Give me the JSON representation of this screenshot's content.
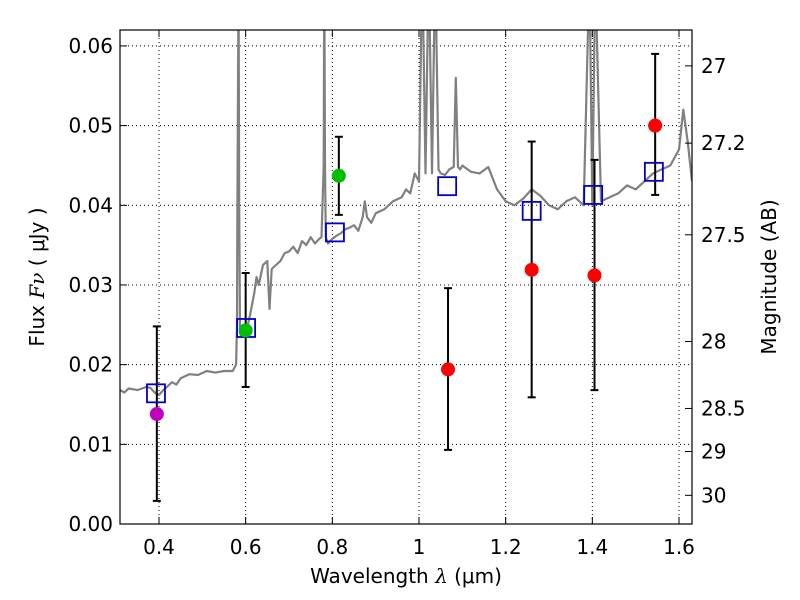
{
  "chart_data": {
    "type": "scatter",
    "xlabel_prefix": "Wavelength",
    "xlabel_symbol": "λ",
    "xlabel_unit": "(μm)",
    "ylabel_prefix": "Flux",
    "ylabel_symbol": "Fν",
    "ylabel_unit": "( μJy )",
    "y2label": "Magnitude (AB)",
    "xlim": [
      0.31,
      1.63
    ],
    "ylim": [
      0.0,
      0.062
    ],
    "grid": true,
    "x_ticks": [
      0.4,
      0.6,
      0.8,
      1.0,
      1.2,
      1.4,
      1.6
    ],
    "x_tick_labels": [
      "0.4",
      "0.6",
      "0.8",
      "1",
      "1.2",
      "1.4",
      "1.6"
    ],
    "y_ticks": [
      0.0,
      0.01,
      0.02,
      0.03,
      0.04,
      0.05,
      0.06
    ],
    "y_tick_labels": [
      "0.00",
      "0.01",
      "0.02",
      "0.03",
      "0.04",
      "0.05",
      "0.06"
    ],
    "magnitude_ticks": [
      {
        "label": "27",
        "flux": 0.0575
      },
      {
        "label": "27.2",
        "flux": 0.0478
      },
      {
        "label": "27.5",
        "flux": 0.0363
      },
      {
        "label": "28",
        "flux": 0.0229
      },
      {
        "label": "28.5",
        "flux": 0.0145
      },
      {
        "label": "29",
        "flux": 0.0091
      },
      {
        "label": "30",
        "flux": 0.0036
      }
    ],
    "observed_points": [
      {
        "x": 0.395,
        "y": 0.0138,
        "yerr_low": 0.0029,
        "yerr_high": 0.0248,
        "color": "#bf00bf"
      },
      {
        "x": 0.6,
        "y": 0.0243,
        "yerr_low": 0.0172,
        "yerr_high": 0.0315,
        "color": "#00bf00"
      },
      {
        "x": 0.815,
        "y": 0.0437,
        "yerr_low": 0.0388,
        "yerr_high": 0.0486,
        "color": "#00bf00"
      },
      {
        "x": 1.067,
        "y": 0.0194,
        "yerr_low": 0.0093,
        "yerr_high": 0.0296,
        "color": "#ff0000"
      },
      {
        "x": 1.26,
        "y": 0.0319,
        "yerr_low": 0.0159,
        "yerr_high": 0.048,
        "color": "#ff0000"
      },
      {
        "x": 1.405,
        "y": 0.0312,
        "yerr_low": 0.0168,
        "yerr_high": 0.0457,
        "color": "#ff0000"
      },
      {
        "x": 1.545,
        "y": 0.05,
        "yerr_low": 0.0413,
        "yerr_high": 0.059,
        "color": "#ff0000"
      }
    ],
    "model_points": [
      {
        "x": 0.393,
        "y": 0.0164
      },
      {
        "x": 0.601,
        "y": 0.0246
      },
      {
        "x": 0.806,
        "y": 0.0366
      },
      {
        "x": 1.065,
        "y": 0.0424
      },
      {
        "x": 1.26,
        "y": 0.0393
      },
      {
        "x": 1.402,
        "y": 0.0413
      },
      {
        "x": 1.542,
        "y": 0.0442
      }
    ],
    "model_color": "#0000cc",
    "sed_color": "#808080",
    "sed_spectrum": {
      "x": [
        0.31,
        0.32,
        0.33,
        0.35,
        0.37,
        0.38,
        0.39,
        0.4,
        0.41,
        0.42,
        0.43,
        0.44,
        0.45,
        0.47,
        0.49,
        0.51,
        0.53,
        0.55,
        0.57,
        0.578,
        0.58,
        0.581,
        0.583,
        0.584,
        0.585,
        0.587,
        0.59,
        0.6,
        0.61,
        0.62,
        0.625,
        0.63,
        0.64,
        0.65,
        0.655,
        0.66,
        0.67,
        0.68,
        0.69,
        0.7,
        0.71,
        0.72,
        0.73,
        0.74,
        0.75,
        0.76,
        0.77,
        0.775,
        0.78,
        0.781,
        0.782,
        0.783,
        0.785,
        0.79,
        0.8,
        0.81,
        0.82,
        0.83,
        0.84,
        0.85,
        0.86,
        0.87,
        0.875,
        0.88,
        0.89,
        0.9,
        0.92,
        0.94,
        0.96,
        0.97,
        0.98,
        0.99,
        1.0,
        1.005,
        1.01,
        1.015,
        1.02,
        1.025,
        1.03,
        1.035,
        1.04,
        1.045,
        1.05,
        1.06,
        1.07,
        1.08,
        1.085,
        1.09,
        1.095,
        1.1,
        1.12,
        1.14,
        1.16,
        1.18,
        1.2,
        1.22,
        1.24,
        1.26,
        1.28,
        1.3,
        1.32,
        1.34,
        1.36,
        1.38,
        1.39,
        1.395,
        1.4,
        1.405,
        1.41,
        1.42,
        1.44,
        1.46,
        1.48,
        1.5,
        1.52,
        1.54,
        1.56,
        1.58,
        1.6,
        1.61,
        1.62,
        1.63
      ],
      "y": [
        0.0168,
        0.0165,
        0.017,
        0.0168,
        0.0172,
        0.0171,
        0.0165,
        0.0162,
        0.0168,
        0.0173,
        0.0178,
        0.0175,
        0.0183,
        0.0188,
        0.0187,
        0.0192,
        0.019,
        0.0192,
        0.0192,
        0.02,
        0.025,
        0.04,
        0.062,
        0.062,
        0.04,
        0.024,
        0.0235,
        0.0238,
        0.0262,
        0.029,
        0.031,
        0.03,
        0.0325,
        0.033,
        0.027,
        0.032,
        0.0325,
        0.033,
        0.034,
        0.0342,
        0.0348,
        0.034,
        0.0355,
        0.035,
        0.036,
        0.0352,
        0.0358,
        0.036,
        0.045,
        0.062,
        0.062,
        0.045,
        0.036,
        0.0352,
        0.0358,
        0.0362,
        0.0365,
        0.037,
        0.0372,
        0.0375,
        0.0368,
        0.0385,
        0.0405,
        0.0385,
        0.0378,
        0.039,
        0.0395,
        0.0405,
        0.041,
        0.042,
        0.0415,
        0.044,
        0.043,
        0.062,
        0.062,
        0.044,
        0.062,
        0.062,
        0.044,
        0.062,
        0.062,
        0.0445,
        0.044,
        0.0438,
        0.0445,
        0.0448,
        0.056,
        0.0448,
        0.0445,
        0.045,
        0.0442,
        0.044,
        0.0448,
        0.042,
        0.0405,
        0.04,
        0.0408,
        0.042,
        0.0412,
        0.04,
        0.0395,
        0.0405,
        0.041,
        0.04,
        0.062,
        0.062,
        0.04,
        0.062,
        0.062,
        0.0405,
        0.041,
        0.0415,
        0.0425,
        0.042,
        0.043,
        0.044,
        0.0445,
        0.045,
        0.047,
        0.052,
        0.048,
        0.043
      ]
    }
  }
}
